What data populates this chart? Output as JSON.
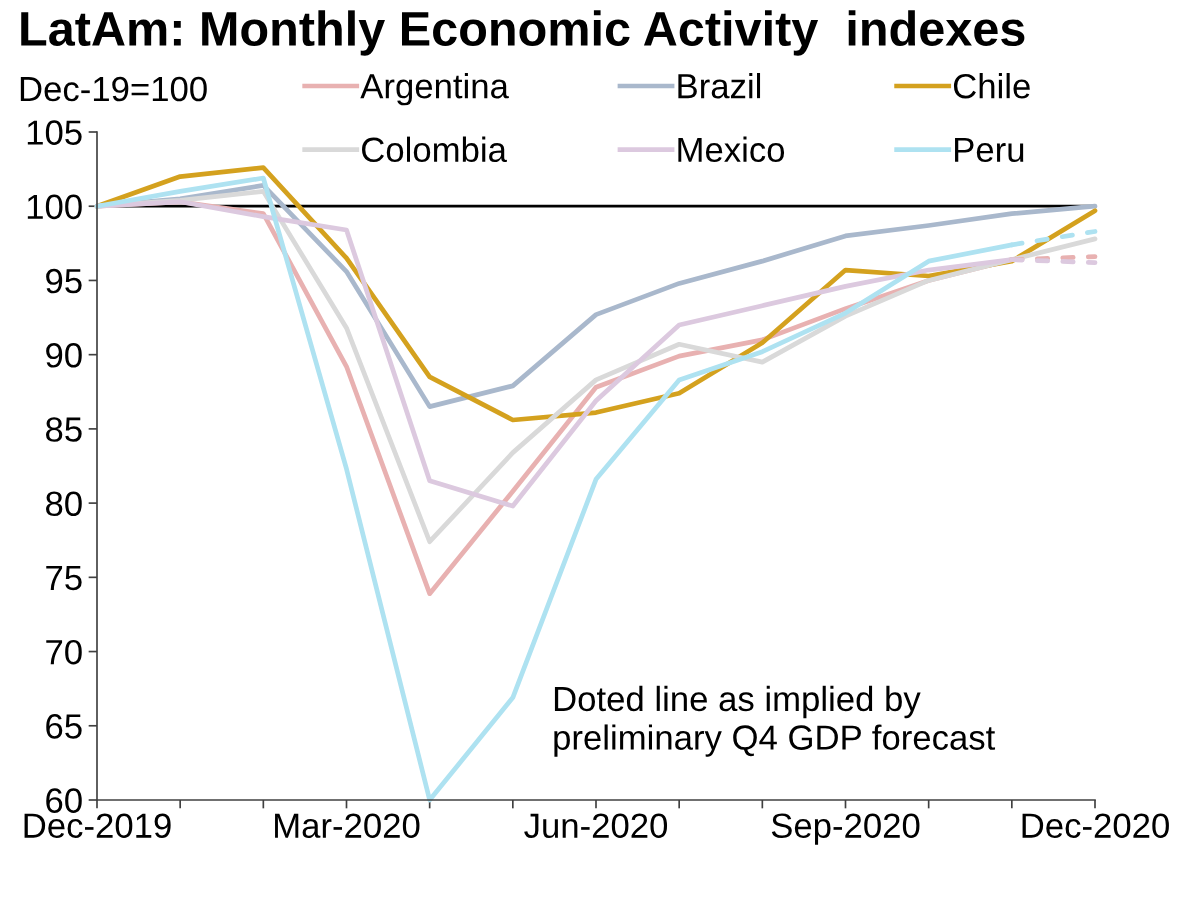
{
  "chart_data": {
    "type": "line",
    "title": "LatAm: Monthly Economic Activity  indexes",
    "ylabel": "Dec-19=100",
    "annotations": [
      "Doted line as implied by\npreliminary Q4 GDP forecast"
    ],
    "categories": [
      "Dec-2019",
      null,
      null,
      "Mar-2020",
      null,
      null,
      "Jun-2020",
      null,
      null,
      "Sep-2020",
      null,
      null,
      "Dec-2020"
    ],
    "series": [
      {
        "name": "Argentina",
        "color": "#e8b1b1",
        "values": [
          100,
          100.3,
          99.5,
          89.2,
          73.9,
          80.8,
          87.8,
          89.9,
          91.0,
          93.1,
          95.0,
          96.4,
          null
        ]
      },
      {
        "name": "Brazil",
        "color": "#a9b8cc",
        "values": [
          100,
          100.5,
          101.4,
          95.6,
          86.5,
          87.9,
          92.7,
          94.8,
          96.3,
          98.0,
          98.7,
          99.5,
          100.0
        ]
      },
      {
        "name": "Chile",
        "color": "#d4a11e",
        "values": [
          100,
          102.0,
          102.6,
          96.5,
          88.5,
          85.6,
          86.1,
          87.4,
          90.8,
          95.7,
          95.3,
          96.3,
          99.7
        ]
      },
      {
        "name": "Colombia",
        "color": "#d9d9d9",
        "values": [
          100,
          100.4,
          101.0,
          91.8,
          77.4,
          83.4,
          88.3,
          90.7,
          89.5,
          92.6,
          95.0,
          96.4,
          97.8
        ]
      },
      {
        "name": "Mexico",
        "color": "#dcc9df",
        "values": [
          100,
          100.3,
          99.3,
          98.4,
          81.5,
          79.8,
          86.9,
          92.0,
          93.3,
          94.6,
          95.7,
          96.4,
          null
        ]
      },
      {
        "name": "Peru",
        "color": "#aee2f1",
        "values": [
          100,
          101.0,
          101.9,
          82.3,
          60.0,
          66.9,
          81.6,
          88.3,
          90.2,
          92.8,
          96.3,
          97.4,
          null
        ]
      },
      {
        "color": "#e8b1b1",
        "line_style": "dashed",
        "values": [
          null,
          null,
          null,
          null,
          null,
          null,
          null,
          null,
          null,
          null,
          null,
          96.4,
          96.6
        ]
      },
      {
        "color": "#dcc9df",
        "line_style": "dashed",
        "values": [
          null,
          null,
          null,
          null,
          null,
          null,
          null,
          null,
          null,
          null,
          null,
          96.4,
          96.2
        ]
      },
      {
        "color": "#aee2f1",
        "line_style": "dashed",
        "values": [
          null,
          null,
          null,
          null,
          null,
          null,
          null,
          null,
          null,
          null,
          null,
          97.4,
          98.3
        ]
      }
    ],
    "ylim": [
      60,
      105
    ],
    "yticks": [
      60,
      65,
      70,
      75,
      80,
      85,
      90,
      95,
      100,
      105
    ],
    "ref_lines": [
      {
        "axis": "y",
        "value": 100,
        "color": "#000000"
      }
    ],
    "legend": "top",
    "grid": false,
    "line_style": "solid"
  }
}
